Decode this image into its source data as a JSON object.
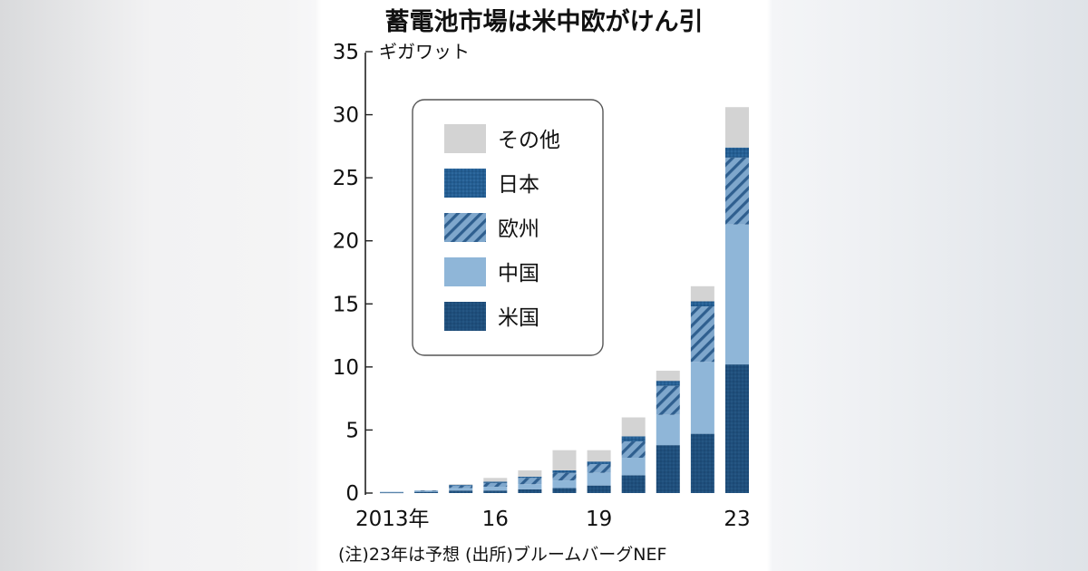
{
  "chart_data": {
    "type": "bar",
    "stacked": true,
    "title": "蓄電池市場は米中欧がけん引",
    "ylabel": "ギガワット",
    "ylim": [
      0,
      35
    ],
    "yticks": [
      0,
      5,
      10,
      15,
      20,
      25,
      30,
      35
    ],
    "categories": [
      "2013",
      "2014",
      "2015",
      "2016",
      "2017",
      "2018",
      "2019",
      "2020",
      "2021",
      "2022",
      "2023"
    ],
    "xtick_labels": [
      "2013年",
      "",
      "",
      "16",
      "",
      "",
      "19",
      "",
      "",
      "",
      "23"
    ],
    "legend_position": "top-left inside plot",
    "series": [
      {
        "name": "米国",
        "values": [
          0.05,
          0.1,
          0.2,
          0.2,
          0.3,
          0.4,
          0.6,
          1.4,
          3.8,
          4.7,
          10.2
        ],
        "color": "#1f4f7c",
        "pattern": "dots"
      },
      {
        "name": "中国",
        "values": [
          0.05,
          0.05,
          0.2,
          0.3,
          0.4,
          0.6,
          1.0,
          1.4,
          2.4,
          5.7,
          11.1
        ],
        "color": "#8fb6d8",
        "pattern": "solid"
      },
      {
        "name": "欧州",
        "values": [
          0.0,
          0.05,
          0.2,
          0.3,
          0.5,
          0.6,
          0.7,
          1.3,
          2.3,
          4.4,
          5.3
        ],
        "color": "#6e9ac2",
        "pattern": "hatch"
      },
      {
        "name": "日本",
        "values": [
          0.0,
          0.0,
          0.05,
          0.1,
          0.1,
          0.2,
          0.2,
          0.4,
          0.4,
          0.4,
          0.8
        ],
        "color": "#245e93",
        "pattern": "dots"
      },
      {
        "name": "その他",
        "values": [
          0.0,
          0.0,
          0.05,
          0.3,
          0.5,
          1.6,
          0.9,
          1.5,
          0.8,
          1.2,
          3.2
        ],
        "color": "#d3d3d3",
        "pattern": "solid"
      }
    ],
    "legend_order": [
      "その他",
      "日本",
      "欧州",
      "中国",
      "米国"
    ],
    "grid": false
  },
  "note": "(注)23年は予想 (出所)ブルームバーグNEF"
}
